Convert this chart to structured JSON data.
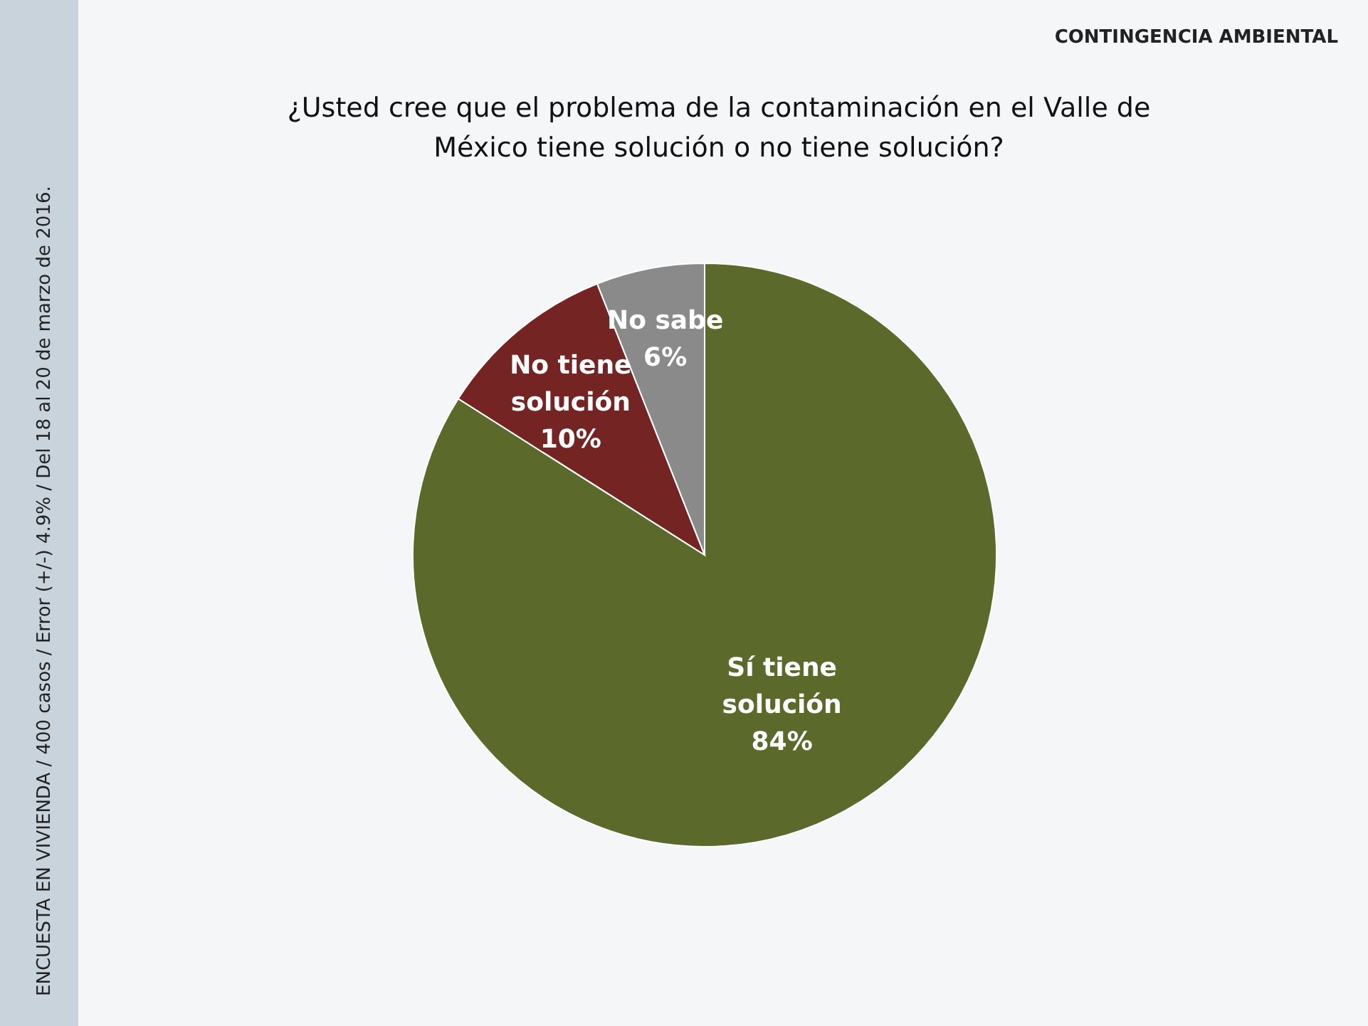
{
  "chart_data": {
    "type": "pie",
    "title": "¿Usted cree que el problema de la contaminación en el Valle de México tiene solución o no tiene solución?",
    "subtitle": "CONTINGENCIA AMBIENTAL",
    "categories": [
      "Sí tiene solución",
      "No tiene solución",
      "No sabe"
    ],
    "values": [
      84,
      10,
      6
    ],
    "value_labels": [
      "84%",
      "10%",
      "6%"
    ],
    "colors": [
      "#5b6a2b",
      "#752424",
      "#8a8a8a"
    ],
    "annotations": [
      "ENCUESTA EN VIVIENDA / 400 casos / Error (+/-) 4.9% / Del 18 al 20 de marzo de 2016."
    ]
  }
}
